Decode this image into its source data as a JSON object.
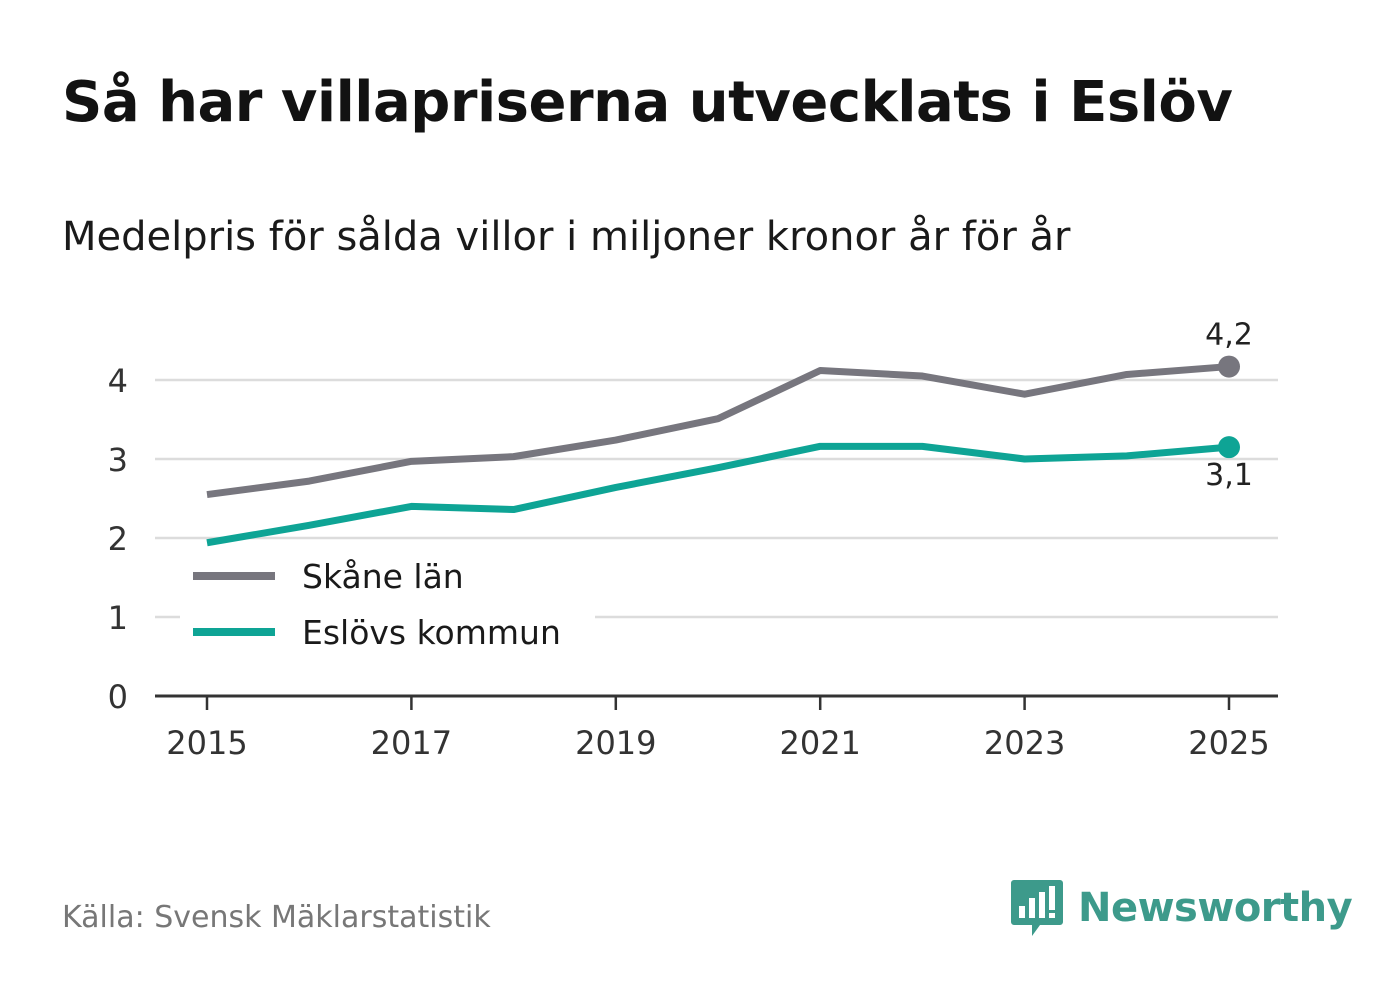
{
  "title": "Så har villapriserna utvecklats i Eslöv",
  "subtitle": "Medelpris för sålda villor i miljoner kronor år för år",
  "source": "Källa: Svensk Mäklarstatistik",
  "brand": {
    "name": "Newsworthy",
    "color": "#3d9a8b"
  },
  "chart_data": {
    "type": "line",
    "title": "Så har villapriserna utvecklats i Eslöv",
    "ylabel": "Medelpris för sålda villor i miljoner kronor år för år",
    "xlabel": "",
    "x": [
      2015,
      2016,
      2017,
      2018,
      2019,
      2020,
      2021,
      2022,
      2023,
      2024,
      2025
    ],
    "xticks": [
      "2015",
      "2017",
      "2019",
      "2021",
      "2023",
      "2025"
    ],
    "yticks": [
      "0",
      "1",
      "2",
      "3",
      "4"
    ],
    "ylim": [
      0,
      4.5
    ],
    "grid": true,
    "legend_position": "bottom-left",
    "series": [
      {
        "name": "Skåne län",
        "color": "#77767e",
        "values": [
          2.55,
          2.72,
          2.97,
          3.03,
          3.24,
          3.51,
          4.12,
          4.05,
          3.82,
          4.07,
          4.17
        ],
        "end_label": "4,2"
      },
      {
        "name": "Eslövs kommun",
        "color": "#0ea495",
        "values": [
          1.94,
          2.16,
          2.4,
          2.36,
          2.64,
          2.89,
          3.16,
          3.16,
          3.0,
          3.04,
          3.15
        ],
        "end_label": "3,1"
      }
    ]
  }
}
